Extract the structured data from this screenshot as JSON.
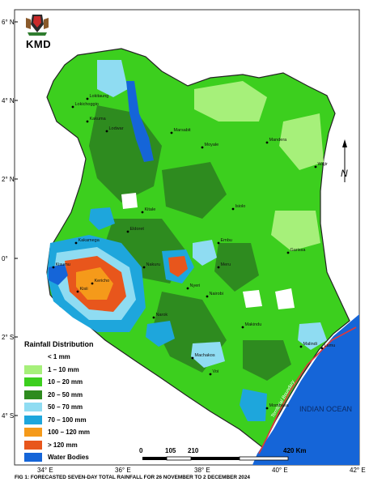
{
  "logo": {
    "text": "KMD"
  },
  "axes": {
    "latitude_labels": [
      "6° N",
      "4° N",
      "2° N",
      "0°",
      "2° S",
      "4° S"
    ],
    "longitude_labels": [
      "34° E",
      "36° E",
      "38° E",
      "40° E",
      "42° E"
    ]
  },
  "places": [
    {
      "name": "Lokitaung"
    },
    {
      "name": "Lokichoggio"
    },
    {
      "name": "Lodwar"
    },
    {
      "name": "Kakuma"
    },
    {
      "name": "Marsabit"
    },
    {
      "name": "Moyale"
    },
    {
      "name": "Mandera"
    },
    {
      "name": "Wajir"
    },
    {
      "name": "Kitale"
    },
    {
      "name": "Eldoret"
    },
    {
      "name": "Kisumu"
    },
    {
      "name": "Kakamega"
    },
    {
      "name": "Kericho"
    },
    {
      "name": "Nakuru"
    },
    {
      "name": "Nyeri"
    },
    {
      "name": "Meru"
    },
    {
      "name": "Isiolo"
    },
    {
      "name": "Garissa"
    },
    {
      "name": "Lamu"
    },
    {
      "name": "Malindi"
    },
    {
      "name": "Mombasa"
    },
    {
      "name": "Voi"
    },
    {
      "name": "Makindu"
    },
    {
      "name": "Nairobi"
    },
    {
      "name": "Narok"
    },
    {
      "name": "Kisii"
    },
    {
      "name": "Embu"
    },
    {
      "name": "Machakos"
    }
  ],
  "sea_label": "INDIAN OCEAN",
  "boundary_label": "Territorial Boundary",
  "north_arrow": {
    "letter": "N"
  },
  "legend": {
    "title": "Rainfall Distribution",
    "items": [
      {
        "label": "< 1 mm",
        "color": "#ffffff"
      },
      {
        "label": "1 – 10 mm",
        "color": "#a6f07a"
      },
      {
        "label": "10 – 20 mm",
        "color": "#3ccf1e"
      },
      {
        "label": "20 – 50 mm",
        "color": "#2e8b1f"
      },
      {
        "label": "50 – 70 mm",
        "color": "#8fdcf2"
      },
      {
        "label": "70 – 100 mm",
        "color": "#1ea6dc"
      },
      {
        "label": "100 – 120 mm",
        "color": "#f59a1a"
      },
      {
        "label": "> 120 mm",
        "color": "#e8561c"
      },
      {
        "label": "Water Bodies",
        "color": "#1565d8"
      }
    ]
  },
  "scale_bar": {
    "ticks": [
      "0",
      "105",
      "210",
      "420 Km"
    ]
  },
  "caption": "FIG 1: FORECASTED SEVEN-DAY TOTAL RAINFALL FOR 26 NOVEMBER TO 2 DECEMBER 2024"
}
